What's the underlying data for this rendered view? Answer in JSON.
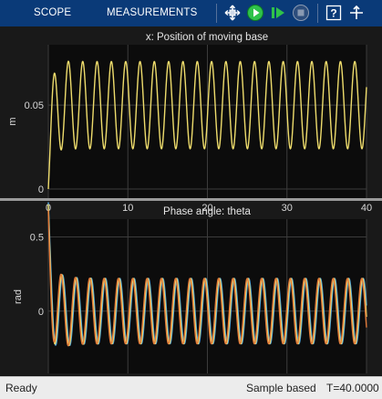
{
  "toolbar": {
    "tabs": [
      {
        "label": "SCOPE",
        "name": "tab-scope"
      },
      {
        "label": "MEASUREMENTS",
        "name": "tab-measurements"
      }
    ],
    "icons": [
      {
        "name": "cursor-tool-icon",
        "color": "#ffffff"
      },
      {
        "name": "run-icon",
        "color": "#2fc24a"
      },
      {
        "name": "step-forward-icon",
        "color": "#2fc24a"
      },
      {
        "name": "stop-icon",
        "color": "#8a9ab2"
      },
      {
        "name": "help-icon",
        "color": "#ffffff"
      },
      {
        "name": "undock-icon",
        "color": "#ffffff"
      }
    ],
    "background": "#0a3a78"
  },
  "status": {
    "left": "Ready",
    "mode": "Sample based",
    "time": "T=40.0000"
  },
  "chart_data": [
    {
      "type": "line",
      "title": "x: Position of moving base",
      "xlabel": "",
      "ylabel": "m",
      "xlim": [
        0,
        40
      ],
      "ylim": [
        -0.006,
        0.086
      ],
      "xticks": [
        "0",
        "10",
        "20",
        "30",
        "40"
      ],
      "yticks": [
        {
          "value": 0,
          "label": "0"
        },
        {
          "value": 0.05,
          "label": "0.05"
        }
      ],
      "grid": true,
      "series": [
        {
          "color": "#eedc6c",
          "model": "x",
          "offset": 0.05,
          "amplitude": 0.026,
          "period": 1.8
        }
      ]
    },
    {
      "type": "line",
      "title": "Phase angle: theta",
      "xlabel": "",
      "ylabel": "rad",
      "xlim": [
        0,
        40
      ],
      "ylim": [
        -0.42,
        0.62
      ],
      "xticks": [
        "0",
        "10",
        "20",
        "30",
        "40"
      ],
      "yticks": [
        {
          "value": 0,
          "label": "0"
        },
        {
          "value": 0.5,
          "label": "0.5"
        }
      ],
      "grid": true,
      "series": [
        {
          "color": "#4fa4dc",
          "model": "theta",
          "amplitude": 0.22,
          "period": 1.8,
          "phase": 0.0
        },
        {
          "color": "#eedc6c",
          "model": "theta",
          "amplitude": 0.22,
          "period": 1.8,
          "phase": 0.35
        },
        {
          "color": "#e07a3a",
          "model": "theta",
          "amplitude": 0.22,
          "period": 1.8,
          "phase": 0.7
        }
      ]
    }
  ]
}
